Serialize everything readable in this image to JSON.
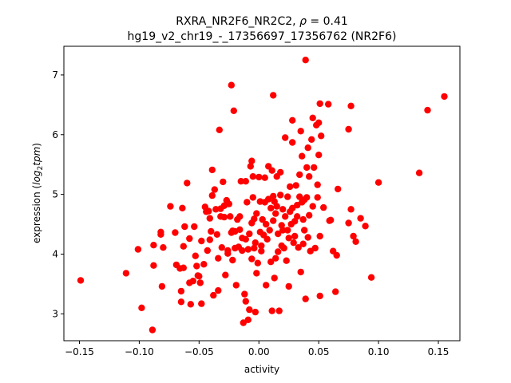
{
  "chart_data": {
    "type": "scatter",
    "title_line1_prefix": "RXRA_NR2F6_NR2C2, ",
    "title_rho_symbol": "ρ",
    "title_rho_value": " = 0.41",
    "title_line2": "hg19_v2_chr19_-_17356697_17356762 (NR2F6)",
    "xlabel": "activity",
    "ylabel_prefix": "expression (",
    "ylabel_math": "log",
    "ylabel_sub": "2",
    "ylabel_math2": "tpm",
    "ylabel_suffix": ")",
    "xlim": [
      -0.163,
      0.168
    ],
    "ylim": [
      2.55,
      7.48
    ],
    "xticks": [
      -0.15,
      -0.1,
      -0.05,
      0.0,
      0.05,
      0.1,
      0.15
    ],
    "xtick_labels": [
      "−0.15",
      "−0.10",
      "−0.05",
      "0.00",
      "0.05",
      "0.10",
      "0.15"
    ],
    "yticks": [
      3,
      4,
      5,
      6,
      7
    ],
    "ytick_labels": [
      "3",
      "4",
      "5",
      "6",
      "7"
    ],
    "marker_color": "#ff0000",
    "points": [
      [
        -0.149,
        3.56
      ],
      [
        -0.111,
        3.68
      ],
      [
        -0.101,
        4.08
      ],
      [
        -0.098,
        3.1
      ],
      [
        -0.089,
        2.73
      ],
      [
        -0.088,
        3.81
      ],
      [
        -0.088,
        4.15
      ],
      [
        -0.082,
        4.37
      ],
      [
        -0.082,
        4.33
      ],
      [
        -0.081,
        3.46
      ],
      [
        -0.08,
        4.11
      ],
      [
        -0.074,
        4.8
      ],
      [
        -0.07,
        4.36
      ],
      [
        -0.069,
        3.82
      ],
      [
        -0.066,
        3.76
      ],
      [
        -0.065,
        3.38
      ],
      [
        -0.065,
        3.2
      ],
      [
        -0.064,
        4.77
      ],
      [
        -0.063,
        4.13
      ],
      [
        -0.063,
        3.77
      ],
      [
        -0.062,
        4.46
      ],
      [
        -0.06,
        5.19
      ],
      [
        -0.058,
        4.26
      ],
      [
        -0.058,
        3.52
      ],
      [
        -0.057,
        3.16
      ],
      [
        -0.055,
        3.55
      ],
      [
        -0.054,
        4.46
      ],
      [
        -0.053,
        3.97
      ],
      [
        -0.052,
        3.8
      ],
      [
        -0.051,
        3.64
      ],
      [
        -0.05,
        3.63
      ],
      [
        -0.049,
        3.52
      ],
      [
        -0.048,
        4.22
      ],
      [
        -0.048,
        3.17
      ],
      [
        -0.046,
        3.83
      ],
      [
        -0.045,
        4.79
      ],
      [
        -0.044,
        4.71
      ],
      [
        -0.043,
        4.06
      ],
      [
        -0.042,
        4.72
      ],
      [
        -0.041,
        4.6
      ],
      [
        -0.041,
        4.24
      ],
      [
        -0.04,
        4.38
      ],
      [
        -0.039,
        5.41
      ],
      [
        -0.039,
        4.98
      ],
      [
        -0.038,
        3.31
      ],
      [
        -0.037,
        5.08
      ],
      [
        -0.036,
        4.75
      ],
      [
        -0.035,
        4.33
      ],
      [
        -0.034,
        3.93
      ],
      [
        -0.034,
        3.39
      ],
      [
        -0.033,
        6.08
      ],
      [
        -0.032,
        4.76
      ],
      [
        -0.032,
        4.63
      ],
      [
        -0.031,
        4.11
      ],
      [
        -0.03,
        5.21
      ],
      [
        -0.029,
        4.81
      ],
      [
        -0.029,
        4.62
      ],
      [
        -0.028,
        3.65
      ],
      [
        -0.027,
        4.9
      ],
      [
        -0.026,
        4.01
      ],
      [
        -0.026,
        4.06
      ],
      [
        -0.025,
        4.84
      ],
      [
        -0.024,
        4.63
      ],
      [
        -0.023,
        4.36
      ],
      [
        -0.023,
        6.83
      ],
      [
        -0.022,
        4.39
      ],
      [
        -0.022,
        3.9
      ],
      [
        -0.021,
        6.4
      ],
      [
        -0.02,
        4.38
      ],
      [
        -0.02,
        4.1
      ],
      [
        -0.019,
        3.48
      ],
      [
        -0.018,
        4.58
      ],
      [
        -0.017,
        4.12
      ],
      [
        -0.016,
        4.63
      ],
      [
        -0.016,
        4.41
      ],
      [
        -0.015,
        5.22
      ],
      [
        -0.014,
        4.27
      ],
      [
        -0.014,
        4.06
      ],
      [
        -0.013,
        2.85
      ],
      [
        -0.012,
        3.33
      ],
      [
        -0.011,
        5.22
      ],
      [
        -0.011,
        3.21
      ],
      [
        -0.011,
        4.25
      ],
      [
        -0.01,
        4.87
      ],
      [
        -0.009,
        4.08
      ],
      [
        -0.009,
        2.9
      ],
      [
        -0.008,
        4.34
      ],
      [
        -0.008,
        3.07
      ],
      [
        -0.007,
        5.47
      ],
      [
        -0.006,
        5.56
      ],
      [
        -0.006,
        4.52
      ],
      [
        -0.006,
        3.92
      ],
      [
        -0.005,
        5.3
      ],
      [
        -0.005,
        4.95
      ],
      [
        -0.004,
        4.59
      ],
      [
        -0.004,
        4.1
      ],
      [
        -0.003,
        4.19
      ],
      [
        -0.003,
        3.03
      ],
      [
        -0.002,
        3.68
      ],
      [
        -0.002,
        4.68
      ],
      [
        -0.001,
        3.85
      ],
      [
        0.0,
        5.29
      ],
      [
        0.001,
        4.88
      ],
      [
        0.001,
        4.37
      ],
      [
        0.002,
        4.14
      ],
      [
        0.002,
        4.05
      ],
      [
        0.003,
        4.58
      ],
      [
        0.004,
        4.32
      ],
      [
        0.005,
        5.28
      ],
      [
        0.005,
        4.87
      ],
      [
        0.006,
        4.5
      ],
      [
        0.006,
        3.48
      ],
      [
        0.007,
        4.25
      ],
      [
        0.008,
        5.47
      ],
      [
        0.008,
        4.92
      ],
      [
        0.009,
        4.4
      ],
      [
        0.01,
        4.77
      ],
      [
        0.01,
        3.87
      ],
      [
        0.011,
        5.4
      ],
      [
        0.011,
        3.05
      ],
      [
        0.012,
        6.66
      ],
      [
        0.012,
        4.97
      ],
      [
        0.012,
        4.56
      ],
      [
        0.013,
        3.6
      ],
      [
        0.013,
        4.88
      ],
      [
        0.014,
        4.68
      ],
      [
        0.014,
        3.93
      ],
      [
        0.015,
        5.3
      ],
      [
        0.015,
        4.8
      ],
      [
        0.016,
        4.34
      ],
      [
        0.016,
        4.04
      ],
      [
        0.017,
        3.05
      ],
      [
        0.018,
        5.37
      ],
      [
        0.018,
        4.99
      ],
      [
        0.019,
        4.14
      ],
      [
        0.019,
        4.48
      ],
      [
        0.02,
        4.75
      ],
      [
        0.02,
        4.4
      ],
      [
        0.021,
        4.1
      ],
      [
        0.022,
        5.95
      ],
      [
        0.022,
        4.63
      ],
      [
        0.023,
        3.89
      ],
      [
        0.024,
        4.96
      ],
      [
        0.024,
        4.4
      ],
      [
        0.025,
        4.27
      ],
      [
        0.025,
        3.46
      ],
      [
        0.026,
        5.13
      ],
      [
        0.026,
        4.71
      ],
      [
        0.027,
        4.5
      ],
      [
        0.028,
        6.24
      ],
      [
        0.028,
        5.87
      ],
      [
        0.028,
        4.77
      ],
      [
        0.029,
        4.19
      ],
      [
        0.03,
        4.55
      ],
      [
        0.03,
        4.3
      ],
      [
        0.031,
        5.15
      ],
      [
        0.032,
        4.82
      ],
      [
        0.032,
        4.63
      ],
      [
        0.033,
        4.11
      ],
      [
        0.034,
        5.33
      ],
      [
        0.034,
        4.96
      ],
      [
        0.035,
        6.06
      ],
      [
        0.035,
        3.7
      ],
      [
        0.036,
        5.64
      ],
      [
        0.036,
        4.87
      ],
      [
        0.037,
        4.58
      ],
      [
        0.037,
        4.17
      ],
      [
        0.038,
        4.91
      ],
      [
        0.038,
        4.4
      ],
      [
        0.039,
        7.25
      ],
      [
        0.039,
        3.25
      ],
      [
        0.04,
        5.45
      ],
      [
        0.04,
        4.95
      ],
      [
        0.041,
        5.78
      ],
      [
        0.041,
        4.28
      ],
      [
        0.042,
        5.3
      ],
      [
        0.042,
        4.65
      ],
      [
        0.043,
        4.05
      ],
      [
        0.044,
        5.92
      ],
      [
        0.045,
        6.28
      ],
      [
        0.045,
        4.8
      ],
      [
        0.046,
        5.45
      ],
      [
        0.047,
        4.1
      ],
      [
        0.048,
        6.16
      ],
      [
        0.049,
        5.16
      ],
      [
        0.049,
        4.95
      ],
      [
        0.05,
        6.2
      ],
      [
        0.05,
        5.66
      ],
      [
        0.051,
        6.52
      ],
      [
        0.051,
        4.3
      ],
      [
        0.051,
        3.3
      ],
      [
        0.052,
        5.98
      ],
      [
        0.054,
        4.78
      ],
      [
        0.058,
        6.51
      ],
      [
        0.059,
        4.56
      ],
      [
        0.06,
        4.57
      ],
      [
        0.062,
        4.05
      ],
      [
        0.064,
        3.37
      ],
      [
        0.065,
        3.98
      ],
      [
        0.066,
        5.09
      ],
      [
        0.075,
        4.52
      ],
      [
        0.075,
        6.09
      ],
      [
        0.077,
        6.48
      ],
      [
        0.077,
        4.75
      ],
      [
        0.079,
        4.3
      ],
      [
        0.081,
        4.21
      ],
      [
        0.085,
        4.6
      ],
      [
        0.089,
        4.47
      ],
      [
        0.094,
        3.61
      ],
      [
        0.1,
        5.2
      ],
      [
        0.134,
        5.36
      ],
      [
        0.141,
        6.41
      ],
      [
        0.155,
        6.64
      ]
    ]
  }
}
